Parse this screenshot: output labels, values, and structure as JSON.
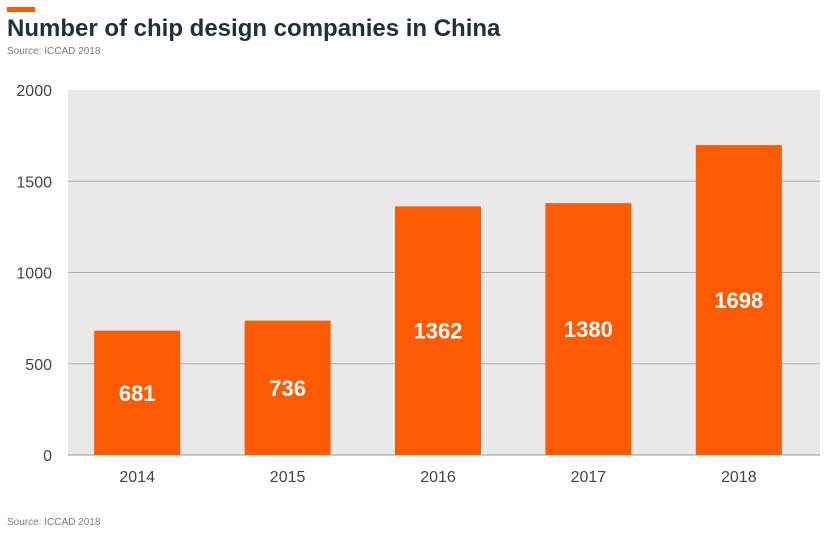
{
  "header": {
    "title": "Number of chip design companies in China",
    "subtitle": "Source: ICCAD 2018"
  },
  "footer": {
    "source": "Source: ICCAD 2018"
  },
  "colors": {
    "accent": "#fc5a03",
    "bar": "#fc5a03",
    "plot_background": "#e9e9e9",
    "gridline": "#aaaaaa",
    "title": "#1d3040"
  },
  "chart_data": {
    "type": "bar",
    "title": "Number of chip design companies in China",
    "subtitle": "Source: ICCAD 2018",
    "categories": [
      "2014",
      "2015",
      "2016",
      "2017",
      "2018"
    ],
    "values": [
      681,
      736,
      1362,
      1380,
      1698
    ],
    "data_labels": [
      "681",
      "736",
      "1362",
      "1380",
      "1698"
    ],
    "xlabel": "",
    "ylabel": "",
    "ylim": [
      0,
      2000
    ],
    "yticks": [
      0,
      500,
      1000,
      1500,
      2000
    ],
    "ytick_labels": [
      "0",
      "500",
      "1000",
      "1500",
      "2000"
    ],
    "grid": true,
    "legend": "none"
  }
}
